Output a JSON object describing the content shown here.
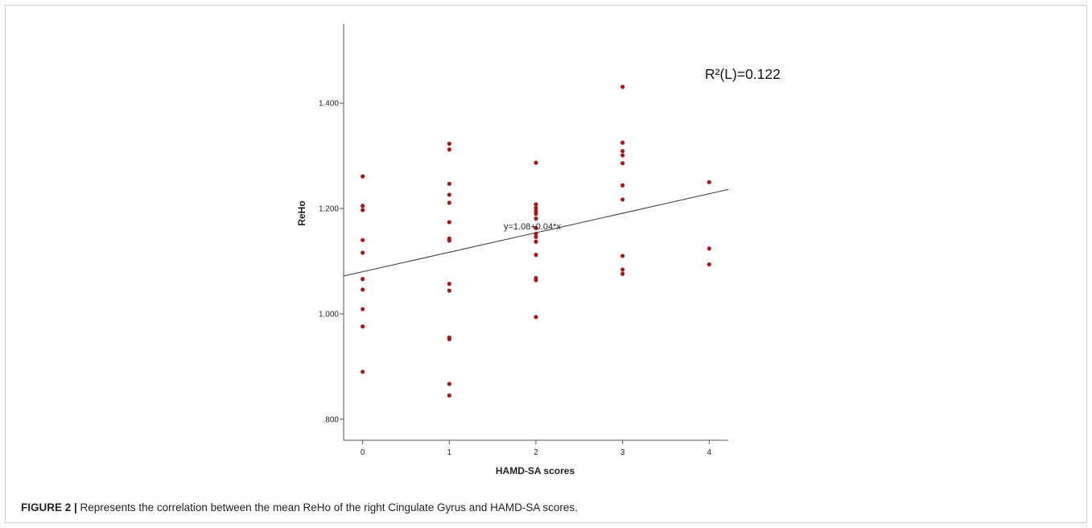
{
  "caption": {
    "label": "FIGURE 2 |",
    "text": " Represents the correlation between the mean ReHo of the right Cingulate Gyrus and HAMD-SA scores."
  },
  "chart_data": {
    "type": "scatter",
    "xlabel": "HAMD-SA scores",
    "ylabel": "ReHo",
    "x_ticks": [
      0,
      1,
      2,
      3,
      4
    ],
    "x_tick_labels": [
      "0",
      "1",
      "2",
      "3",
      "4"
    ],
    "y_ticks": [
      0.8,
      1.0,
      1.2,
      1.4
    ],
    "y_tick_labels": [
      ".800",
      "1.000",
      "1.200",
      "1.400"
    ],
    "xlim": [
      -0.22,
      4.22
    ],
    "ylim": [
      0.76,
      1.55
    ],
    "r2_label": "R²(L)=0.122",
    "fit_equation_label": "y=1.08+0.04*x",
    "fit": {
      "intercept": 1.08,
      "slope": 0.037
    },
    "point_color": "#a01c1c",
    "line_color": "#333333",
    "points": [
      [
        0,
        1.261
      ],
      [
        0,
        1.205
      ],
      [
        0,
        1.197
      ],
      [
        0,
        1.14
      ],
      [
        0,
        1.116
      ],
      [
        0,
        1.066
      ],
      [
        0,
        1.046
      ],
      [
        0,
        1.009
      ],
      [
        0,
        0.976
      ],
      [
        0,
        0.89
      ],
      [
        1,
        1.323
      ],
      [
        1,
        1.312
      ],
      [
        1,
        1.247
      ],
      [
        1,
        1.226
      ],
      [
        1,
        1.211
      ],
      [
        1,
        1.174
      ],
      [
        1,
        1.143
      ],
      [
        1,
        1.139
      ],
      [
        1,
        1.057
      ],
      [
        1,
        1.044
      ],
      [
        1,
        0.955
      ],
      [
        1,
        0.952
      ],
      [
        1,
        0.867
      ],
      [
        1,
        0.845
      ],
      [
        2,
        1.287
      ],
      [
        2,
        1.208
      ],
      [
        2,
        1.201
      ],
      [
        2,
        1.195
      ],
      [
        2,
        1.19
      ],
      [
        2,
        1.181
      ],
      [
        2,
        1.163
      ],
      [
        2,
        1.152
      ],
      [
        2,
        1.146
      ],
      [
        2,
        1.137
      ],
      [
        2,
        1.112
      ],
      [
        2,
        1.068
      ],
      [
        2,
        1.064
      ],
      [
        2,
        0.994
      ],
      [
        3,
        1.431
      ],
      [
        3,
        1.325
      ],
      [
        3,
        1.309
      ],
      [
        3,
        1.301
      ],
      [
        3,
        1.286
      ],
      [
        3,
        1.244
      ],
      [
        3,
        1.217
      ],
      [
        3,
        1.11
      ],
      [
        3,
        1.084
      ],
      [
        3,
        1.076
      ],
      [
        4,
        1.25
      ],
      [
        4,
        1.124
      ],
      [
        4,
        1.094
      ]
    ]
  }
}
